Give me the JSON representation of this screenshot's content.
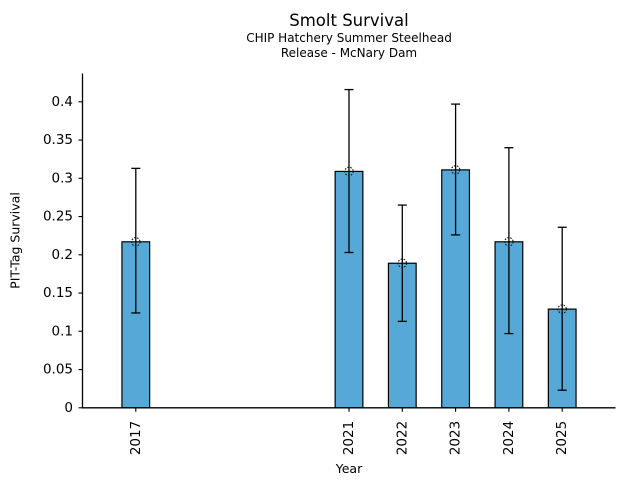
{
  "chart_data": {
    "type": "bar",
    "title": "Smolt Survival",
    "subtitle1": "CHIP Hatchery Summer Steelhead",
    "subtitle2": "Release - McNary Dam",
    "xlabel": "Year",
    "ylabel": "PIT-Tag Survival",
    "categories": [
      "2017",
      "2021",
      "2022",
      "2023",
      "2024",
      "2025"
    ],
    "x": [
      2017,
      2021,
      2022,
      2023,
      2024,
      2025
    ],
    "values": [
      0.217,
      0.309,
      0.189,
      0.311,
      0.217,
      0.129
    ],
    "error_low": [
      0.124,
      0.203,
      0.113,
      0.226,
      0.097,
      0.023
    ],
    "error_high": [
      0.313,
      0.416,
      0.265,
      0.397,
      0.34,
      0.236
    ],
    "ytick_values": [
      0,
      0.05,
      0.1,
      0.15,
      0.2,
      0.25,
      0.3,
      0.35,
      0.4
    ],
    "ytick_labels": [
      "0",
      "0.05",
      "0.1",
      "0.15",
      "0.2",
      "0.25",
      "0.3",
      "0.35",
      "0.4"
    ],
    "xlim": [
      2016,
      2026
    ],
    "ylim": [
      0,
      0.437
    ],
    "bar_width_years": 0.52,
    "bar_color": "#56A9D6",
    "bar_edge_color": "#000000",
    "error_bar_color": "#000000",
    "marker": "open-circle-dotted",
    "grid": false,
    "legend": null
  }
}
